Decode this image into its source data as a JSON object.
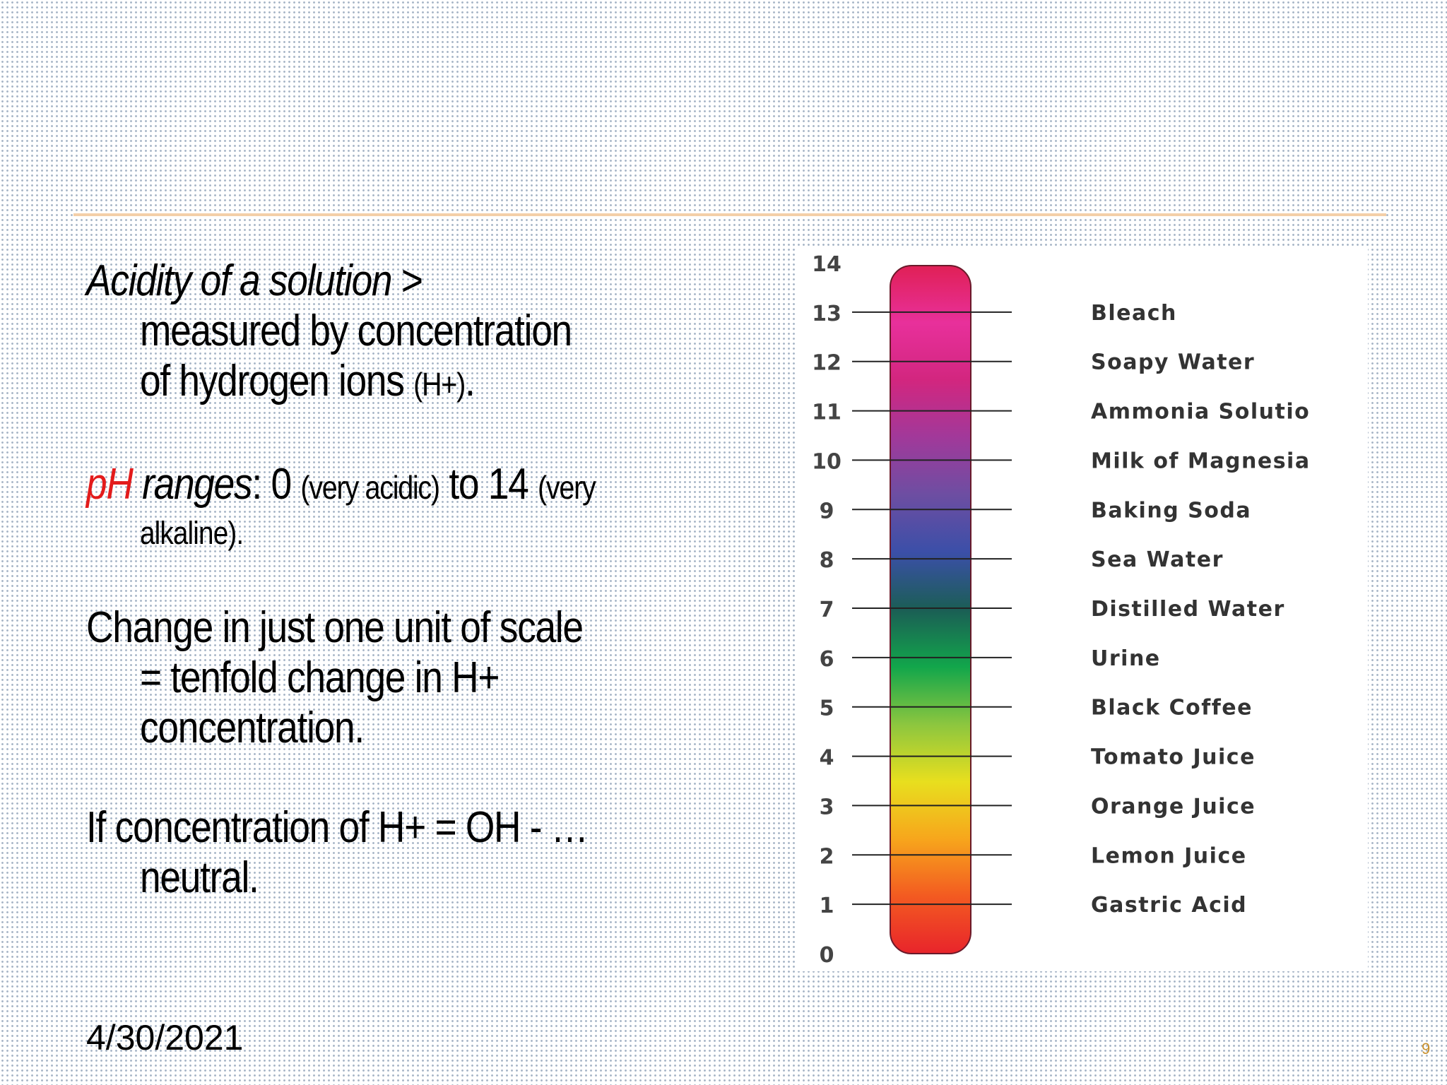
{
  "slide": {
    "bullets": [
      {
        "lines": [
          "Acidity of a solution  >",
          "measured by concentration",
          "of hydrogen ions (H+)."
        ]
      },
      {
        "lines": [
          "pH ranges: 0 (very acidic) to 14 (very",
          "alkaline)."
        ]
      },
      {
        "lines": [
          "Change in just one unit of scale",
          "= tenfold change in H+",
          "concentration."
        ]
      },
      {
        "lines": [
          "If concentration of H+ = OH - …",
          "neutral."
        ]
      }
    ],
    "b1": {
      "lead": "Acidity of a solution",
      "gt": "  >",
      "l2": "measured by concentration",
      "l3a": "of hydrogen ions ",
      "l3b": "(H+)",
      "l3c": "."
    },
    "b2": {
      "ph": "pH",
      "ranges": " ranges",
      "colon": ": 0 ",
      "acidic": "(very acidic)",
      "to14": " to 14 ",
      "very": "(very",
      "l2": "alkaline)."
    },
    "b3": {
      "l1": "Change in just one unit of scale",
      "l2": "= tenfold change in H+",
      "l3": "concentration."
    },
    "b4": {
      "l1": "If concentration of H+ = OH - …",
      "l2": "neutral."
    },
    "date": "4/30/2021",
    "page_number": "9",
    "colors": {
      "accent_red": "#e31b1b",
      "rule": "#f3cfa8",
      "page_number": "#c8902e"
    }
  },
  "chart_data": {
    "type": "scale",
    "ticks": [
      "0",
      "1",
      "2",
      "3",
      "4",
      "5",
      "6",
      "7",
      "8",
      "9",
      "10",
      "11",
      "12",
      "13",
      "14"
    ],
    "substances": [
      {
        "ph": 13,
        "name": "Bleach"
      },
      {
        "ph": 12,
        "name": "Soapy Water"
      },
      {
        "ph": 11,
        "name": "Ammonia Solutio"
      },
      {
        "ph": 10,
        "name": "Milk of Magnesia"
      },
      {
        "ph": 9,
        "name": "Baking Soda"
      },
      {
        "ph": 8,
        "name": "Sea Water"
      },
      {
        "ph": 7,
        "name": "Distilled Water"
      },
      {
        "ph": 6,
        "name": "Urine"
      },
      {
        "ph": 5,
        "name": "Black Coffee"
      },
      {
        "ph": 4,
        "name": "Tomato Juice"
      },
      {
        "ph": 3,
        "name": "Orange Juice"
      },
      {
        "ph": 2,
        "name": "Lemon Juice"
      },
      {
        "ph": 1,
        "name": "Gastric Acid"
      }
    ],
    "gradient_colors": [
      "#e8242b",
      "#f35a21",
      "#f7a61c",
      "#e8df1e",
      "#8cc63f",
      "#12a64b",
      "#1b5e55",
      "#3b4fa8",
      "#6d4ea2",
      "#a1399a",
      "#d2267f",
      "#e8309b",
      "#e02056"
    ]
  }
}
